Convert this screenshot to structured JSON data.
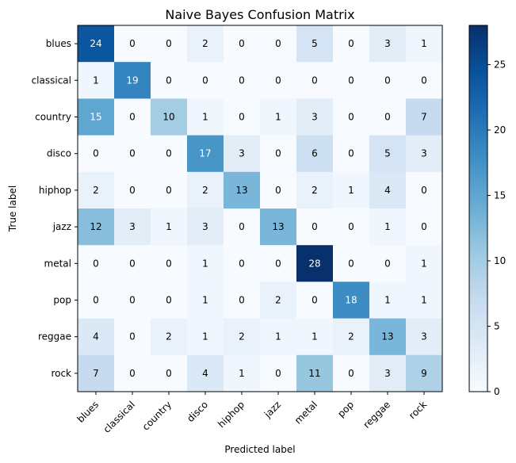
{
  "chart_data": {
    "type": "heatmap",
    "title": "Naive Bayes Confusion Matrix",
    "xlabel": "Predicted label",
    "ylabel": "True label",
    "x_categories": [
      "blues",
      "classical",
      "country",
      "disco",
      "hiphop",
      "jazz",
      "metal",
      "pop",
      "reggae",
      "rock"
    ],
    "y_categories": [
      "blues",
      "classical",
      "country",
      "disco",
      "hiphop",
      "jazz",
      "metal",
      "pop",
      "reggae",
      "rock"
    ],
    "matrix": [
      [
        24,
        0,
        0,
        2,
        0,
        0,
        5,
        0,
        3,
        1
      ],
      [
        1,
        19,
        0,
        0,
        0,
        0,
        0,
        0,
        0,
        0
      ],
      [
        15,
        0,
        10,
        1,
        0,
        1,
        3,
        0,
        0,
        7
      ],
      [
        0,
        0,
        0,
        17,
        3,
        0,
        6,
        0,
        5,
        3
      ],
      [
        2,
        0,
        0,
        2,
        13,
        0,
        2,
        1,
        4,
        0
      ],
      [
        12,
        3,
        1,
        3,
        0,
        13,
        0,
        0,
        1,
        0
      ],
      [
        0,
        0,
        0,
        1,
        0,
        0,
        28,
        0,
        0,
        1
      ],
      [
        0,
        0,
        0,
        1,
        0,
        2,
        0,
        18,
        1,
        1
      ],
      [
        4,
        0,
        2,
        1,
        2,
        1,
        1,
        2,
        13,
        3
      ],
      [
        7,
        0,
        0,
        4,
        1,
        0,
        11,
        0,
        3,
        9
      ]
    ],
    "colormap": "Blues",
    "vmin": 0,
    "vmax": 28,
    "colorbar_ticks": [
      0,
      5,
      10,
      15,
      20,
      25
    ],
    "grid": false
  }
}
